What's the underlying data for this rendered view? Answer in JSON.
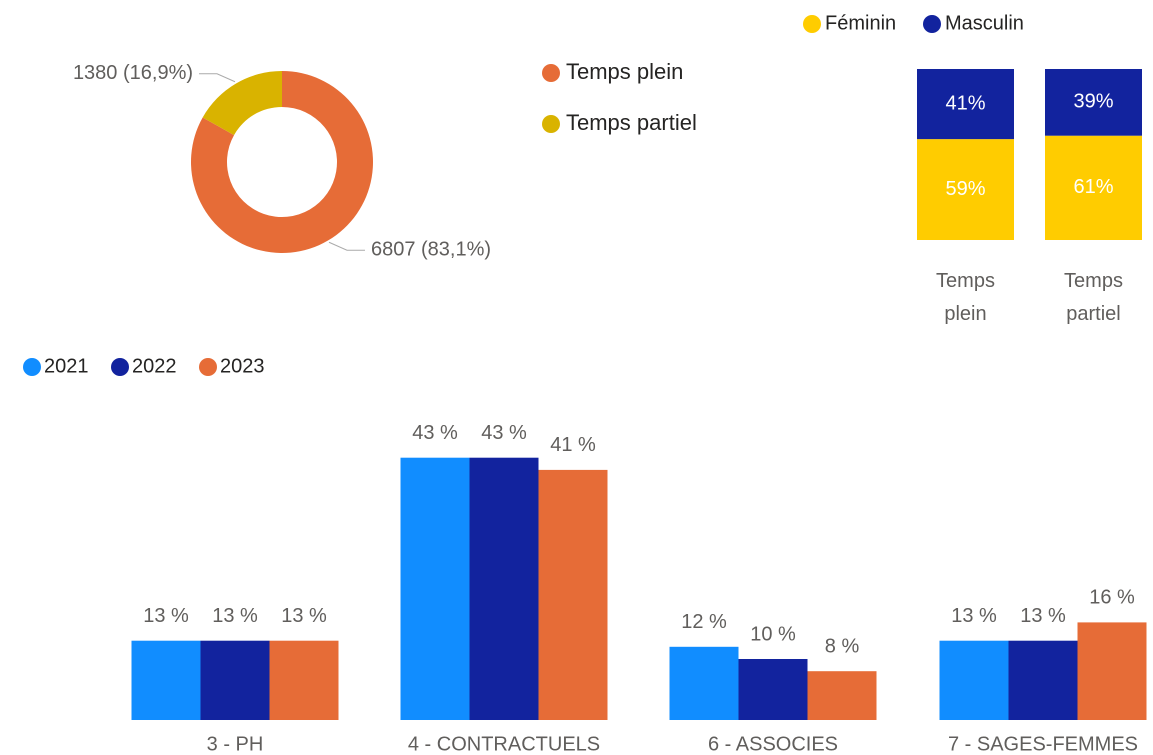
{
  "chart_data": [
    {
      "type": "donut",
      "categories": [
        "Temps plein",
        "Temps partiel"
      ],
      "values": [
        6807,
        1380
      ],
      "value_labels": [
        "6807 (83,1%)",
        "1380 (16,9%)"
      ],
      "colors": [
        "#E66C37",
        "#D9B300"
      ],
      "legend": "right"
    },
    {
      "type": "stacked_bar",
      "categories": [
        "Temps plein",
        "Temps partiel"
      ],
      "legend": "top",
      "series": [
        {
          "name": "Féminin",
          "color": "#FFCC00",
          "values": [
            59,
            61
          ],
          "value_labels": [
            "59%",
            "61%"
          ]
        },
        {
          "name": "Masculin",
          "color": "#12239E",
          "values": [
            41,
            39
          ],
          "value_labels": [
            "41%",
            "39%"
          ]
        }
      ]
    },
    {
      "type": "grouped_bar",
      "categories": [
        "3 - PH",
        "4 - CONTRACTUELS",
        "6 - ASSOCIES",
        "7 - SAGES-FEMMES"
      ],
      "legend": "top-left",
      "series": [
        {
          "name": "2021",
          "color": "#118DFF",
          "values": [
            13,
            43,
            12,
            13
          ],
          "value_labels": [
            "13 %",
            "43 %",
            "12 %",
            "13 %"
          ]
        },
        {
          "name": "2022",
          "color": "#12239E",
          "values": [
            13,
            43,
            10,
            13
          ],
          "value_labels": [
            "13 %",
            "43 %",
            "10 %",
            "13 %"
          ]
        },
        {
          "name": "2023",
          "color": "#E66C37",
          "values": [
            13,
            41,
            8,
            16
          ],
          "value_labels": [
            "13 %",
            "41 %",
            "8 %",
            "16 %"
          ]
        }
      ]
    }
  ]
}
